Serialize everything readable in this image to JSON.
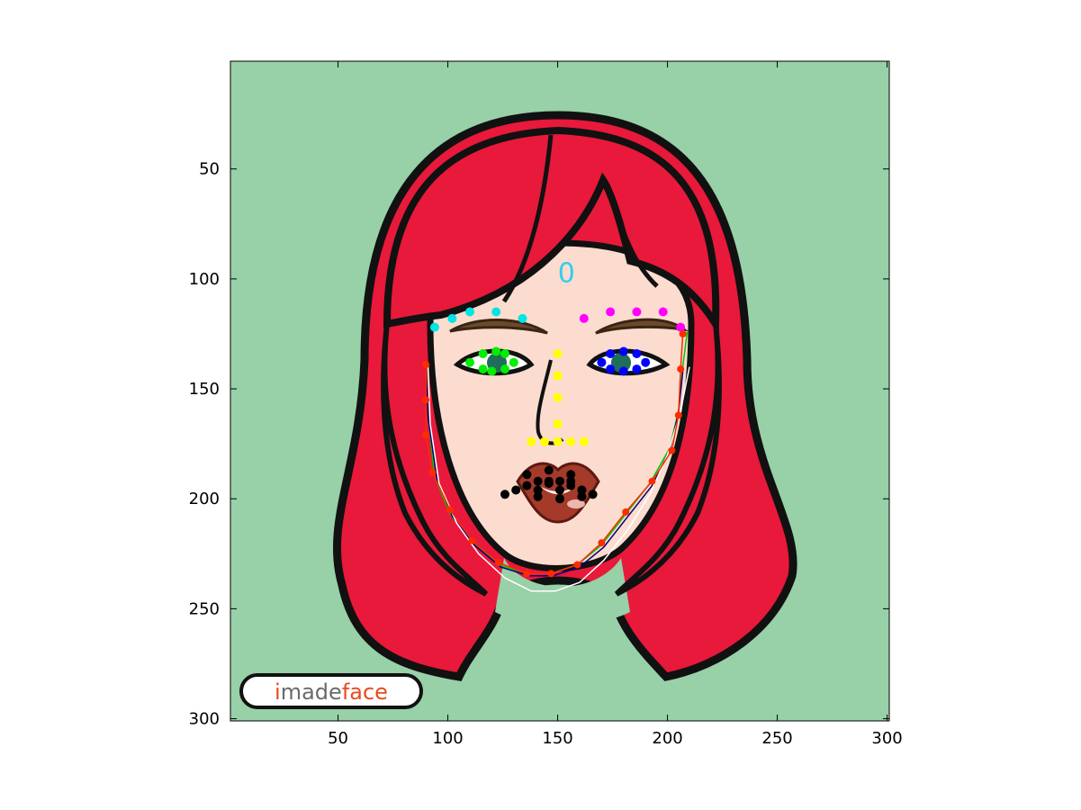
{
  "chart_data": {
    "type": "scatter",
    "title": "",
    "xlabel": "",
    "ylabel": "",
    "xlim": [
      1,
      301
    ],
    "ylim": [
      301,
      1
    ],
    "y_direction": "reversed",
    "grid": false,
    "legend": "none",
    "xticks": [
      50,
      100,
      150,
      200,
      250,
      300
    ],
    "yticks": [
      50,
      100,
      150,
      200,
      250,
      300
    ],
    "xtick_labels": [
      "50",
      "100",
      "150",
      "200",
      "250",
      "300"
    ],
    "ytick_labels": [
      "50",
      "100",
      "150",
      "200",
      "250",
      "300"
    ],
    "annotation": {
      "text": "0",
      "x": 154,
      "y": 97,
      "color": "#33ccee"
    },
    "logo": {
      "part1": "i",
      "part2": "made",
      "part3": "face",
      "color1": "#e84a1f",
      "color2": "#6b6b6b",
      "color3": "#e84a1f"
    },
    "series": [
      {
        "color": "#00e5e5",
        "x": [
          94,
          102,
          110,
          122,
          134
        ],
        "y": [
          122,
          118,
          115,
          115,
          118
        ]
      },
      {
        "color": "#ff00ff",
        "x": [
          162,
          174,
          186,
          198,
          206
        ],
        "y": [
          118,
          115,
          115,
          115,
          122
        ]
      },
      {
        "color": "#00ee00",
        "x": [
          110,
          116,
          122,
          126,
          130,
          126,
          120,
          116
        ],
        "y": [
          138,
          134,
          133,
          134,
          138,
          141,
          142,
          141
        ]
      },
      {
        "color": "#0000ff",
        "x": [
          170,
          174,
          180,
          186,
          190,
          186,
          180,
          174
        ],
        "y": [
          138,
          134,
          133,
          134,
          138,
          141,
          142,
          141
        ]
      },
      {
        "color": "#ffff00",
        "x": [
          150,
          150,
          150,
          150,
          138,
          144,
          150,
          156,
          162
        ],
        "y": [
          134,
          144,
          154,
          166,
          174,
          174,
          174,
          174,
          174
        ]
      },
      {
        "color": "#000000",
        "x": [
          126,
          131,
          136,
          141,
          146,
          151,
          156,
          161,
          166,
          136,
          146,
          156,
          141,
          151,
          161,
          146,
          156,
          141,
          151,
          161
        ],
        "y": [
          198,
          196,
          194,
          192,
          193,
          192,
          194,
          196,
          198,
          189,
          187,
          189,
          199,
          200,
          199,
          192,
          192,
          196,
          196,
          196
        ]
      },
      {
        "color": "#ff2a00",
        "x": [
          90,
          90,
          90,
          93,
          101,
          111,
          123,
          136,
          147,
          159,
          170,
          181,
          193,
          202,
          205,
          206,
          207
        ],
        "y": [
          139,
          155,
          171,
          188,
          205,
          219,
          229,
          234,
          234,
          230,
          220,
          206,
          192,
          178,
          162,
          141,
          125
        ]
      }
    ],
    "fitted_curves": [
      {
        "color": "#00c800",
        "x": [
          90,
          91,
          94,
          101,
          111,
          123,
          136,
          147,
          159,
          170,
          181,
          192,
          201,
          205,
          207,
          209
        ],
        "y": [
          139,
          162,
          190,
          207,
          220,
          230,
          234,
          234,
          230,
          221,
          207,
          193,
          177,
          160,
          140,
          124
        ]
      },
      {
        "color": "#000080",
        "x": [
          90,
          91,
          95,
          102,
          112,
          124,
          137,
          148,
          160,
          171,
          182,
          193,
          201,
          205,
          207
        ],
        "y": [
          141,
          163,
          191,
          208,
          221,
          231,
          235,
          235,
          231,
          222,
          208,
          194,
          178,
          161,
          142
        ]
      },
      {
        "color": "#ffffff",
        "x": [
          91,
          92,
          96,
          104,
          114,
          126,
          138,
          149,
          160,
          171,
          182,
          192,
          200,
          206,
          210
        ],
        "y": [
          140,
          166,
          193,
          211,
          225,
          236,
          242,
          242,
          238,
          228,
          214,
          198,
          180,
          160,
          140
        ]
      }
    ]
  }
}
